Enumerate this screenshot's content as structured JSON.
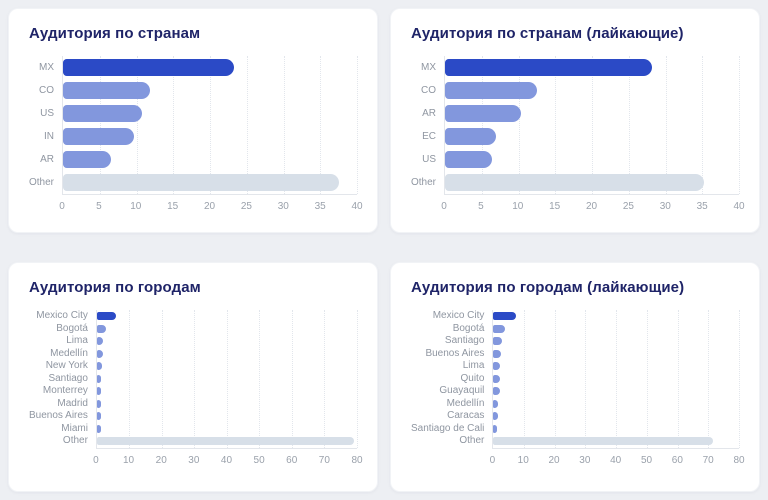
{
  "page": {
    "background": "#edeff3"
  },
  "colors": {
    "card_background": "#ffffff",
    "title_text": "#1f2468",
    "category_label_text": "#8f96a1",
    "tick_label_text": "#9aa1ab",
    "axis_line": "#e3e6eb",
    "gridline": "#e2e6ec",
    "bar_primary": "#2b4ac6",
    "bar_secondary": "#8297dd",
    "bar_other": "#d7dfe8"
  },
  "chart_data": [
    {
      "type": "bar",
      "orientation": "horizontal",
      "title": "Аудитория по странам",
      "categories": [
        "MX",
        "CO",
        "US",
        "IN",
        "AR",
        "Other"
      ],
      "values": [
        23.2,
        11.9,
        10.8,
        9.7,
        6.5,
        37.6
      ],
      "xlim": [
        0,
        40
      ],
      "xticks": [
        0,
        5,
        10,
        15,
        20,
        25,
        30,
        35,
        40
      ],
      "grid": "vertical-dotted",
      "legend": "none"
    },
    {
      "type": "bar",
      "orientation": "horizontal",
      "title": "Аудитория по странам (лайкающие)",
      "categories": [
        "MX",
        "CO",
        "AR",
        "EC",
        "US",
        "Other"
      ],
      "values": [
        28.1,
        12.5,
        10.3,
        6.9,
        6.4,
        35.2
      ],
      "xlim": [
        0,
        40
      ],
      "xticks": [
        0,
        5,
        10,
        15,
        20,
        25,
        30,
        35,
        40
      ],
      "grid": "vertical-dotted",
      "legend": "none"
    },
    {
      "type": "bar",
      "orientation": "horizontal",
      "title": "Аудитория по городам",
      "categories": [
        "Mexico City",
        "Bogotá",
        "Lima",
        "Medellín",
        "New York",
        "Santiago",
        "Monterrey",
        "Madrid",
        "Buenos Aires",
        "Miami",
        "Other"
      ],
      "values": [
        5.8,
        2.8,
        1.8,
        1.8,
        1.5,
        1.4,
        1.4,
        1.2,
        1.2,
        1.1,
        79.0
      ],
      "xlim": [
        0,
        80
      ],
      "xticks": [
        0,
        10,
        20,
        30,
        40,
        50,
        60,
        70,
        80
      ],
      "grid": "vertical-dotted",
      "legend": "none"
    },
    {
      "type": "bar",
      "orientation": "horizontal",
      "title": "Аудитория по городам (лайкающие)",
      "categories": [
        "Mexico City",
        "Bogotá",
        "Santiago",
        "Buenos Aires",
        "Lima",
        "Quito",
        "Guayaquil",
        "Medellín",
        "Caracas",
        "Santiago de Cali",
        "Other"
      ],
      "values": [
        7.5,
        3.8,
        2.7,
        2.5,
        2.2,
        2.2,
        2.2,
        1.5,
        1.4,
        1.3,
        71.5
      ],
      "xlim": [
        0,
        80
      ],
      "xticks": [
        0,
        10,
        20,
        30,
        40,
        50,
        60,
        70,
        80
      ],
      "grid": "vertical-dotted",
      "legend": "none"
    }
  ]
}
